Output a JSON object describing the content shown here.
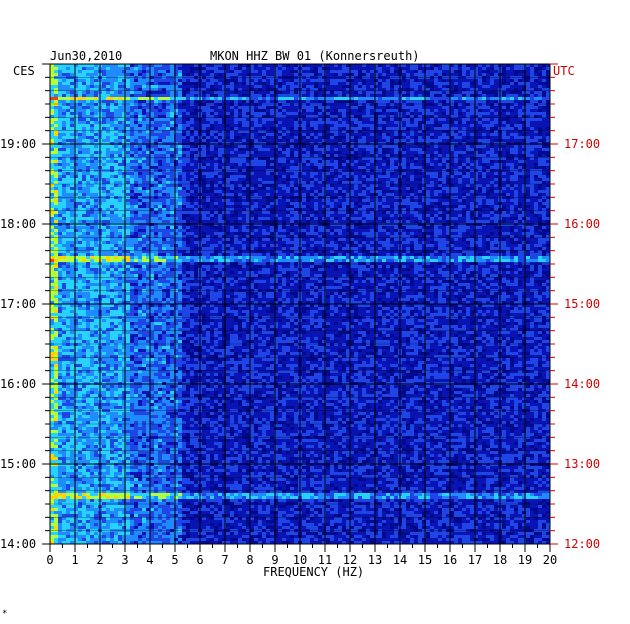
{
  "chart_data": {
    "type": "heatmap",
    "title": "MKON HHZ BW 01 (Konnersreuth)",
    "date": "Jun30,2010",
    "left_timezone": "CES",
    "right_timezone": "UTC",
    "xlabel": "FREQUENCY (HZ)",
    "xlim": [
      0,
      20
    ],
    "x_ticks": [
      "0",
      "1",
      "2",
      "3",
      "4",
      "5",
      "6",
      "7",
      "8",
      "9",
      "10",
      "11",
      "12",
      "13",
      "14",
      "15",
      "16",
      "17",
      "18",
      "19",
      "20"
    ],
    "ylim_ces": [
      "14:00",
      "20:00"
    ],
    "y_ticks_ces": [
      "14:00",
      "15:00",
      "16:00",
      "17:00",
      "18:00",
      "19:00"
    ],
    "y_ticks_utc": [
      "12:00",
      "13:00",
      "14:00",
      "15:00",
      "16:00",
      "17:00"
    ],
    "background_color": "#0a14b4",
    "grid_color": "#000000",
    "colormap": [
      "#000a8c",
      "#0a14b4",
      "#1e46e6",
      "#1e8cff",
      "#28d2ff",
      "#b4ff3c",
      "#ffd200",
      "#ff3c00"
    ],
    "strong_energy_band_hz": [
      0,
      5.2
    ],
    "broadband_event_rows_ces": [
      "19:35",
      "17:35",
      "14:37"
    ]
  },
  "footer_mark": "*"
}
